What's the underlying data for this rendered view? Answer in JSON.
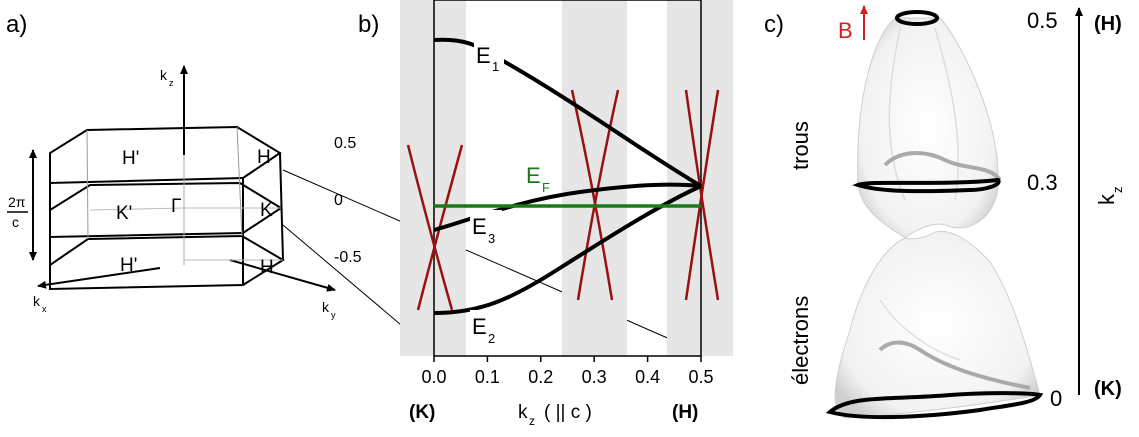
{
  "panel_a": {
    "label": "a)",
    "axis_kz": "k",
    "axis_kz_sub": "z",
    "axis_kx": "k",
    "axis_kx_sub": "x",
    "axis_ky": "k",
    "axis_ky_sub": "y",
    "point_H_prime_top": "H'",
    "point_H_top": "H",
    "point_K_prime": "K'",
    "point_Gamma": "Γ",
    "point_K": "K",
    "point_H_prime_bottom": "H'",
    "point_H_bottom": "H",
    "tick_top": "0.5",
    "tick_mid": "0",
    "tick_bottom": "-0.5",
    "height_num": "2π",
    "height_den": "c"
  },
  "panel_b": {
    "label": "b)",
    "band_E1": "E",
    "band_E1_sub": "1",
    "band_E2": "E",
    "band_E2_sub": "2",
    "band_E3": "E",
    "band_E3_sub": "3",
    "fermi": "E",
    "fermi_sub": "F",
    "x_ticks": [
      "0.0",
      "0.1",
      "0.2",
      "0.3",
      "0.4",
      "0.5"
    ],
    "x_label_k": "k",
    "x_label_sub": "z",
    "x_label_rest": "( || c )",
    "end_left": "(K)",
    "end_right": "(H)",
    "colors": {
      "band": "#000000",
      "fermi": "#1a7a1a",
      "cone": "#9b1010",
      "shade": "#e6e6e6"
    }
  },
  "panel_c": {
    "label": "c)",
    "field": "B",
    "holes": "trous",
    "electrons": "électrons",
    "kz_top": "0.5",
    "kz_mid": "0.3",
    "kz_bottom": "0",
    "end_top": "(H)",
    "end_bottom": "(K)",
    "axis_k": "k",
    "axis_sub": "z",
    "colors": {
      "field": "#d42020"
    }
  }
}
